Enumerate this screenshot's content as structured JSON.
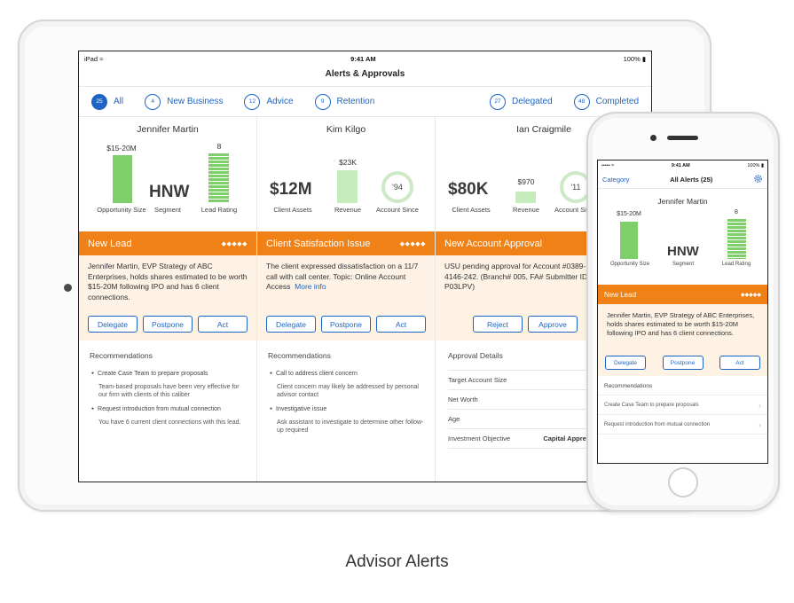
{
  "ipad": {
    "status": {
      "device": "iPad",
      "time": "9:41 AM",
      "battery": "100%"
    },
    "title": "Alerts & Approvals",
    "filters_left": [
      {
        "count": "25",
        "label": "All",
        "active": true
      },
      {
        "count": "4",
        "label": "New Business",
        "active": false
      },
      {
        "count": "12",
        "label": "Advice",
        "active": false
      },
      {
        "count": "9",
        "label": "Retention",
        "active": false
      }
    ],
    "filters_right": [
      {
        "count": "27",
        "label": "Delegated",
        "active": false
      },
      {
        "count": "48",
        "label": "Completed",
        "active": false
      }
    ],
    "cards": [
      {
        "name": "Jennifer Martin",
        "metrics": {
          "opportunity_value": "$15-20M",
          "opportunity_caption": "Opportunity Size",
          "segment_value": "HNW",
          "segment_caption": "Segment",
          "lead_rating_value": "8",
          "lead_rating_caption": "Lead Rating"
        },
        "banner_title": "New Lead",
        "banner_dots": "◆◆◆◆◆",
        "description": "Jennifer Martin, EVP Strategy of ABC Enterprises, holds shares estimated to be worth $15-20M following IPO and has 6 client connections.",
        "buttons": [
          "Delegate",
          "Postpone",
          "Act"
        ],
        "recommendations_header": "Recommendations",
        "recommendations": [
          {
            "title": "Create Case Team to prepare proposals",
            "note": "Team-based proposals have been very effective for our firm with clients of this caliber"
          },
          {
            "title": "Request introduction from mutual connection",
            "note": "You have 6 current client connections with this lead."
          }
        ]
      },
      {
        "name": "Kim Kilgo",
        "metrics": {
          "assets_value": "$12M",
          "assets_caption": "Client Assets",
          "revenue_value": "$23K",
          "revenue_caption": "Revenue",
          "since_value": "'94",
          "since_caption": "Account Since"
        },
        "banner_title": "Client Satisfaction Issue",
        "banner_dots": "◆◆◆◆◆",
        "description": "The client expressed dissatisfaction on a 11/7 call with call center.  Topic: Online Account Access",
        "more_info": "More info",
        "buttons": [
          "Delegate",
          "Postpone",
          "Act"
        ],
        "recommendations_header": "Recommendations",
        "recommendations": [
          {
            "title": "Call to address client concern",
            "note": "Client concern may likely be addressed by personal advisor contact"
          },
          {
            "title": "Investigative issue",
            "note": "Ask assistant to investigate to determine other follow-up required"
          }
        ]
      },
      {
        "name": "Ian Craigmile",
        "metrics": {
          "assets_value": "$80K",
          "assets_caption": "Client Assets",
          "revenue_value": "$970",
          "revenue_caption": "Revenue",
          "since_value": "'11",
          "since_caption": "Account Since"
        },
        "banner_title": "New Account Approval",
        "banner_dots": "◆◆",
        "description": "USU pending approval for Account #0389-4146-242. (Branch# 005, FA# Submitter ID P03LPV)",
        "buttons": [
          "Reject",
          "Approve"
        ],
        "approval_header": "Approval Details",
        "approval_rows": [
          {
            "label": "Target Account Size",
            "value": ""
          },
          {
            "label": "Net Worth",
            "value": ""
          },
          {
            "label": "Age",
            "value": ""
          },
          {
            "label": "Investment Objective",
            "value": "Capital Apprec"
          }
        ]
      }
    ]
  },
  "iphone": {
    "status": {
      "time": "9:41 AM",
      "battery": "100%"
    },
    "nav": {
      "left": "Category",
      "title": "All Alerts (25)",
      "right_icon": "gear-icon"
    },
    "card": {
      "name": "Jennifer Martin",
      "opportunity_value": "$15-20M",
      "opportunity_caption": "Opportunity Size",
      "segment_value": "HNW",
      "segment_caption": "Segment",
      "lead_rating_value": "8",
      "lead_rating_caption": "Lead Rating",
      "banner_title": "New Lead",
      "banner_dots": "◆◆◆◆◆",
      "description": "Jennifer Martin, EVP Strategy of ABC Enterprises, holds shares estimated to be worth $15-20M following IPO and has 6 client connections.",
      "buttons": [
        "Delegate",
        "Postpone",
        "Act"
      ],
      "recommendations_header": "Recommendations",
      "recommendations": [
        "Create Case Team to prepare proposals",
        "Request introduction from mutual connection"
      ]
    }
  },
  "caption": "Advisor Alerts",
  "colors": {
    "accent_blue": "#1d64c4",
    "banner_orange": "#ef8116",
    "bar_green": "#7ecf6a",
    "desc_bg": "#fdf2e4"
  }
}
